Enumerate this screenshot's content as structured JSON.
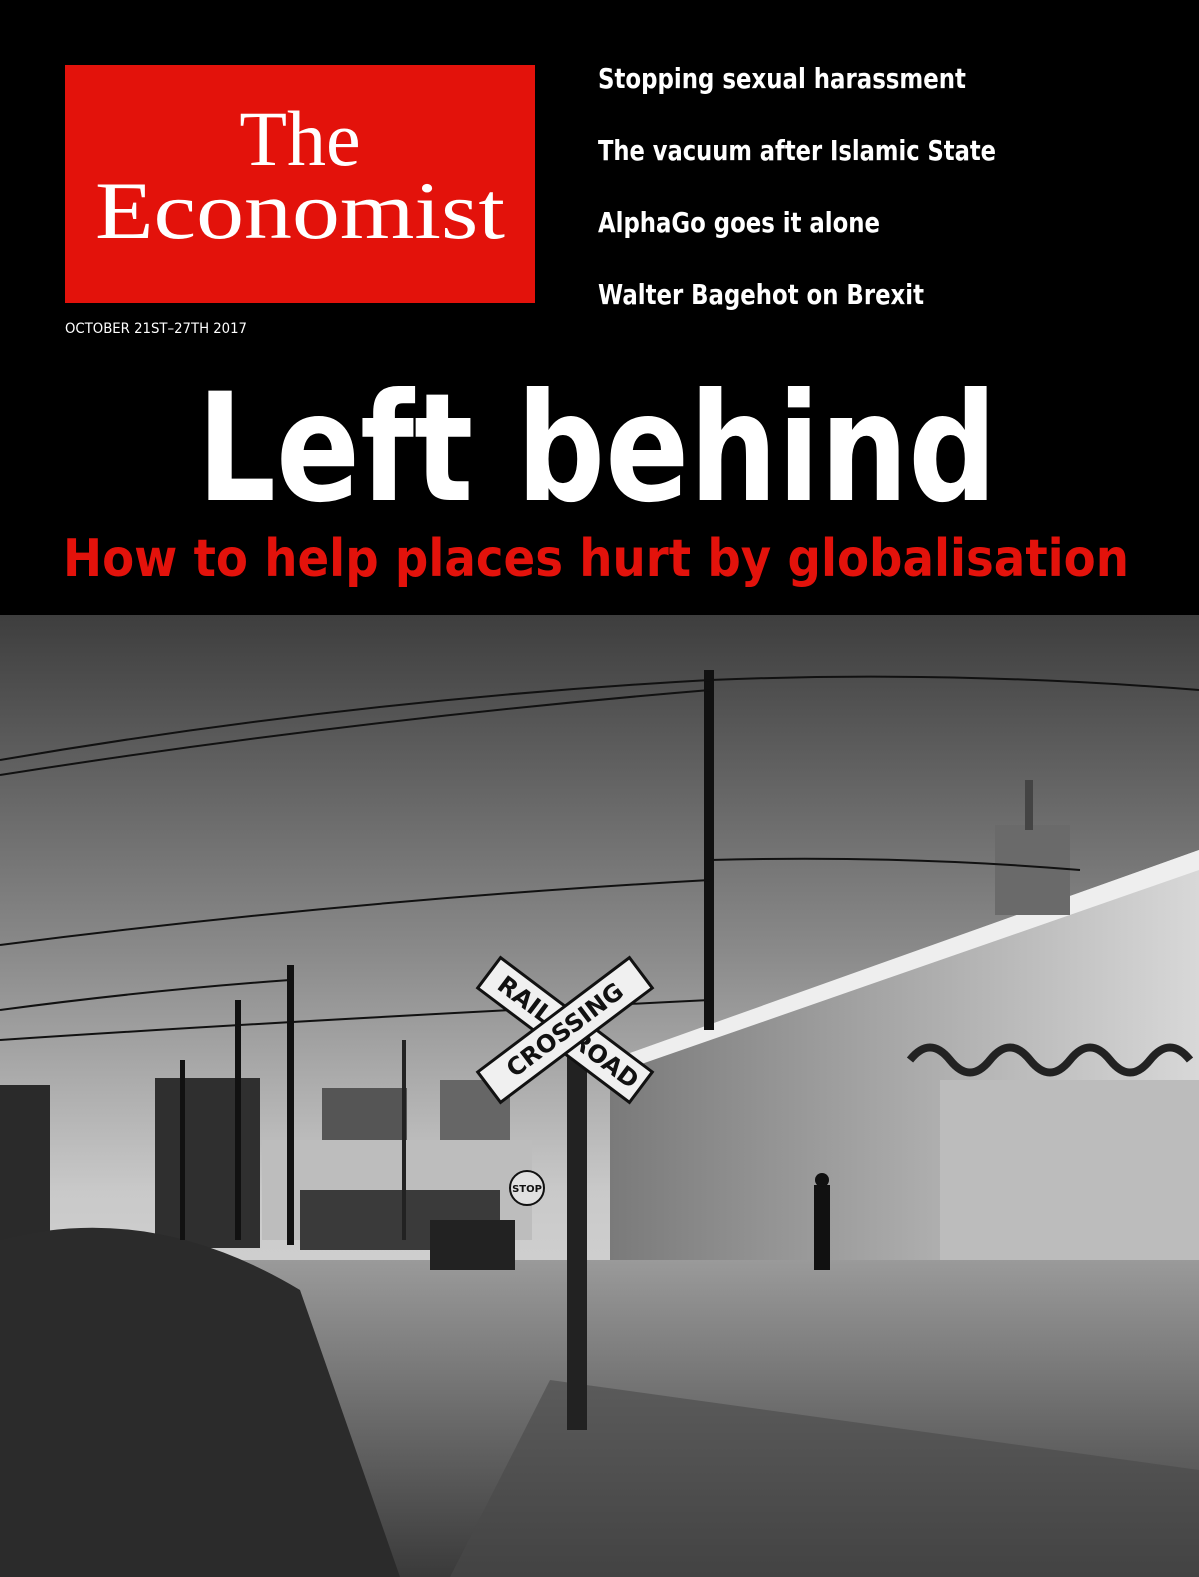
{
  "masthead": {
    "line1": "The",
    "line2": "Economist"
  },
  "teasers": [
    "Stopping sexual harassment",
    "The vacuum after Islamic State",
    "AlphaGo goes it alone",
    "Walter Bagehot on Brexit"
  ],
  "issue_date": "OCTOBER 21ST–27TH 2017",
  "headline": "Left behind",
  "subheadline": "How to help places hurt by globalisation",
  "photo": {
    "signs": [
      "RAIL",
      "ROAD",
      "CROSSING",
      "STOP"
    ]
  }
}
